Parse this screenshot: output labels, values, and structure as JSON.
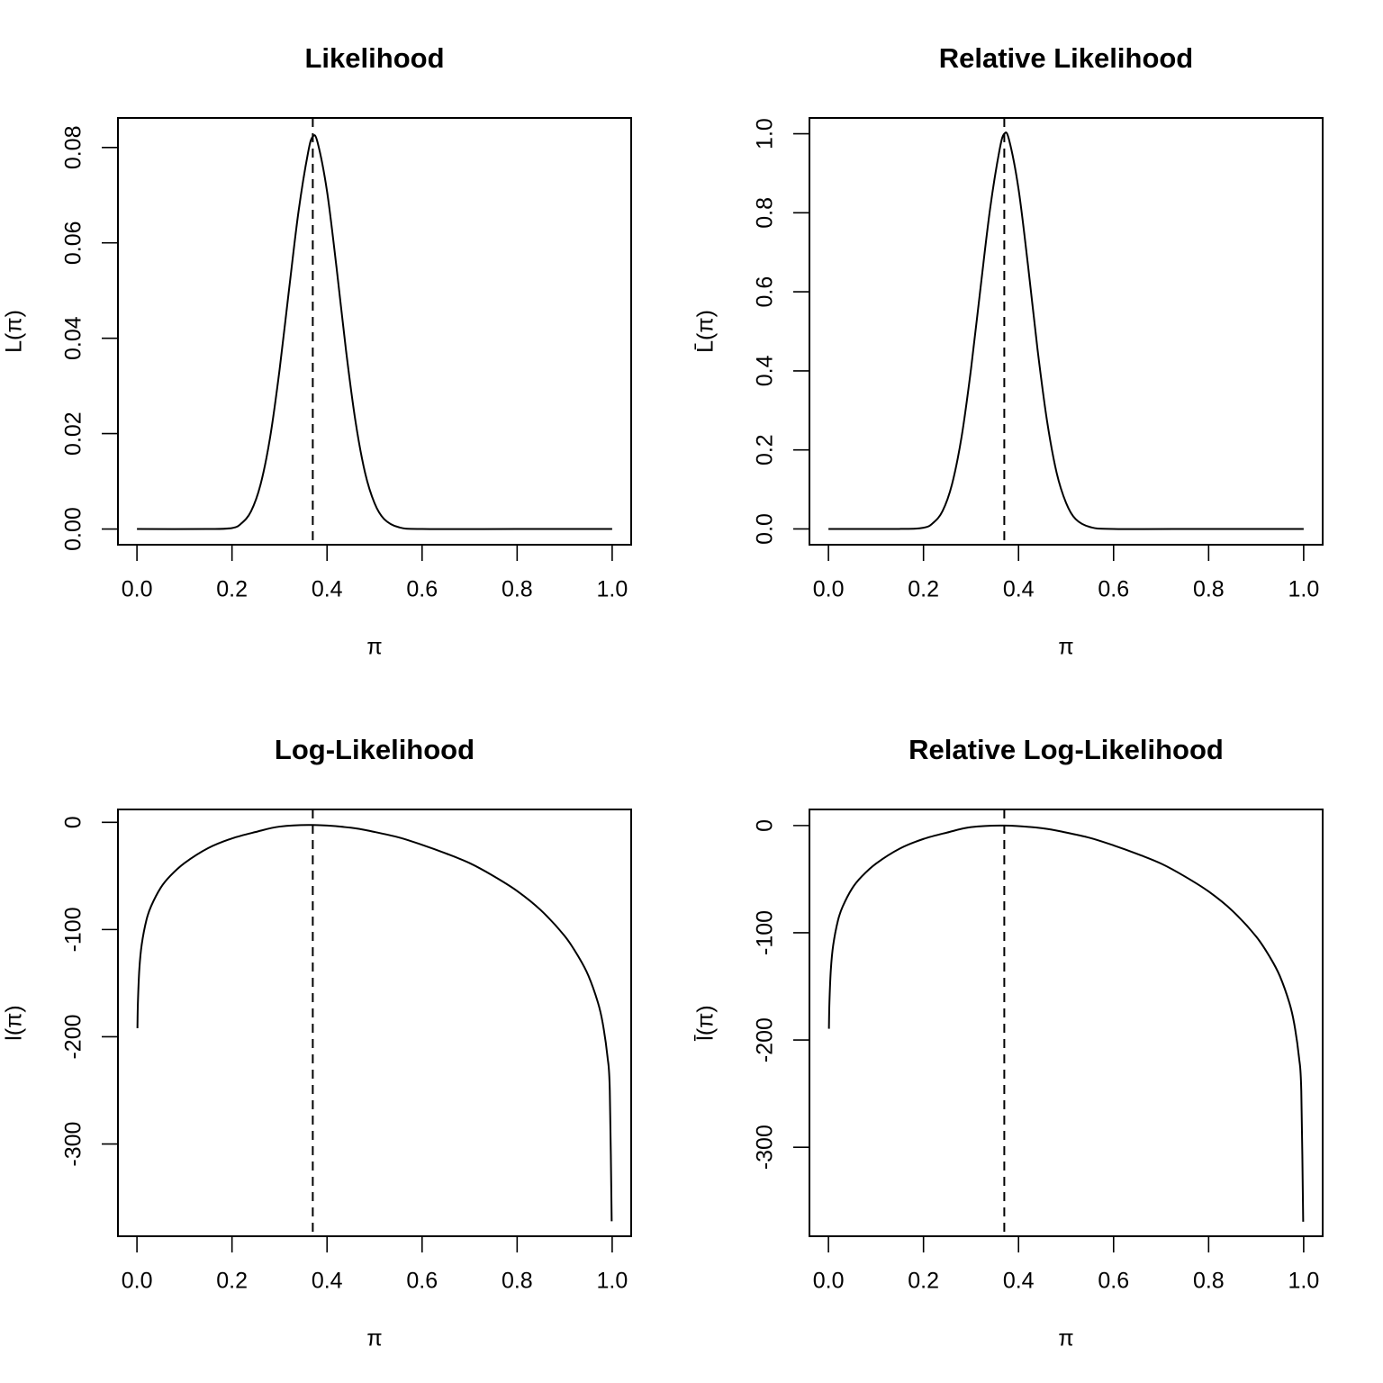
{
  "chart_data": [
    {
      "type": "line",
      "title": "Likelihood",
      "xlabel": "π",
      "ylabel": "L(π)",
      "xlim": [
        -0.04,
        1.04
      ],
      "ylim": [
        -0.0033,
        0.0862
      ],
      "xticks": [
        0.0,
        0.2,
        0.4,
        0.6,
        0.8,
        1.0
      ],
      "xtick_labels": [
        "0.0",
        "0.2",
        "0.4",
        "0.6",
        "0.8",
        "1.0"
      ],
      "yticks": [
        0.0,
        0.02,
        0.04,
        0.06,
        0.08
      ],
      "ytick_labels": [
        "0.00",
        "0.02",
        "0.04",
        "0.06",
        "0.08"
      ],
      "vline": 0.37,
      "series": [
        {
          "x": [
            0.0,
            0.15,
            0.2,
            0.22,
            0.24,
            0.26,
            0.28,
            0.3,
            0.32,
            0.34,
            0.36,
            0.37,
            0.38,
            0.4,
            0.42,
            0.44,
            0.46,
            0.48,
            0.5,
            0.52,
            0.55,
            0.6,
            0.8,
            1.0
          ],
          "y": [
            0.0,
            0.0,
            0.0002,
            0.0012,
            0.0037,
            0.0093,
            0.0191,
            0.0333,
            0.0502,
            0.0666,
            0.0789,
            0.0823,
            0.0811,
            0.0708,
            0.0548,
            0.0374,
            0.0225,
            0.0118,
            0.0054,
            0.0021,
            0.0004,
            0.0,
            0.0,
            0.0
          ]
        }
      ],
      "grid": false
    },
    {
      "type": "line",
      "title": "Relative Likelihood",
      "xlabel": "π",
      "ylabel": "L̄(π)",
      "xlim": [
        -0.04,
        1.04
      ],
      "ylim": [
        -0.04,
        1.04
      ],
      "xticks": [
        0.0,
        0.2,
        0.4,
        0.6,
        0.8,
        1.0
      ],
      "xtick_labels": [
        "0.0",
        "0.2",
        "0.4",
        "0.6",
        "0.8",
        "1.0"
      ],
      "yticks": [
        0.0,
        0.2,
        0.4,
        0.6,
        0.8,
        1.0
      ],
      "ytick_labels": [
        "0.0",
        "0.2",
        "0.4",
        "0.6",
        "0.8",
        "1.0"
      ],
      "vline": 0.37,
      "series": [
        {
          "x": [
            0.0,
            0.15,
            0.2,
            0.22,
            0.24,
            0.26,
            0.28,
            0.3,
            0.32,
            0.34,
            0.36,
            0.37,
            0.38,
            0.4,
            0.42,
            0.44,
            0.46,
            0.48,
            0.5,
            0.52,
            0.55,
            0.6,
            0.8,
            1.0
          ],
          "y": [
            0.0,
            0.0,
            0.003,
            0.015,
            0.045,
            0.113,
            0.232,
            0.405,
            0.61,
            0.809,
            0.959,
            1.0,
            0.985,
            0.86,
            0.666,
            0.454,
            0.273,
            0.143,
            0.066,
            0.025,
            0.005,
            0.0,
            0.0,
            0.0
          ]
        }
      ],
      "grid": false
    },
    {
      "type": "line",
      "title": "Log-Likelihood",
      "xlabel": "π",
      "ylabel": "l(π)",
      "xlim": [
        -0.04,
        1.04
      ],
      "ylim": [
        -386,
        12
      ],
      "xticks": [
        0.0,
        0.2,
        0.4,
        0.6,
        0.8,
        1.0
      ],
      "xtick_labels": [
        "0.0",
        "0.2",
        "0.4",
        "0.6",
        "0.8",
        "1.0"
      ],
      "yticks": [
        0,
        -100,
        -200,
        -300
      ],
      "ytick_labels": [
        "0",
        "-100",
        "-200",
        "-300"
      ],
      "vline": 0.37,
      "series": [
        {
          "x": [
            0.001,
            0.002,
            0.005,
            0.01,
            0.02,
            0.03,
            0.05,
            0.07,
            0.1,
            0.15,
            0.2,
            0.25,
            0.3,
            0.37,
            0.45,
            0.5,
            0.55,
            0.6,
            0.65,
            0.7,
            0.75,
            0.8,
            0.85,
            0.9,
            0.93,
            0.95,
            0.97,
            0.98,
            0.99,
            0.995,
            0.999
          ],
          "y": [
            -192,
            -168,
            -137,
            -114,
            -91,
            -78,
            -61,
            -50,
            -38,
            -24,
            -15,
            -9,
            -4,
            -2.5,
            -5,
            -9,
            -14,
            -21,
            -29,
            -38,
            -50,
            -64,
            -82,
            -106,
            -126,
            -143,
            -168,
            -187,
            -218,
            -250,
            -372
          ]
        }
      ],
      "grid": false
    },
    {
      "type": "line",
      "title": "Relative Log-Likelihood",
      "xlabel": "π",
      "ylabel": "l̄(π)",
      "xlim": [
        -0.04,
        1.04
      ],
      "ylim": [
        -383,
        15
      ],
      "xticks": [
        0.0,
        0.2,
        0.4,
        0.6,
        0.8,
        1.0
      ],
      "xtick_labels": [
        "0.0",
        "0.2",
        "0.4",
        "0.6",
        "0.8",
        "1.0"
      ],
      "yticks": [
        0,
        -100,
        -200,
        -300
      ],
      "ytick_labels": [
        "0",
        "-100",
        "-200",
        "-300"
      ],
      "vline": 0.37,
      "series": [
        {
          "x": [
            0.001,
            0.002,
            0.005,
            0.01,
            0.02,
            0.03,
            0.05,
            0.07,
            0.1,
            0.15,
            0.2,
            0.25,
            0.3,
            0.37,
            0.45,
            0.5,
            0.55,
            0.6,
            0.65,
            0.7,
            0.75,
            0.8,
            0.85,
            0.9,
            0.93,
            0.95,
            0.97,
            0.98,
            0.99,
            0.995,
            0.999
          ],
          "y": [
            -189.5,
            -165.5,
            -134.5,
            -111.5,
            -88.5,
            -75.5,
            -58.5,
            -47.5,
            -35.5,
            -21.5,
            -12.5,
            -6.5,
            -1.5,
            0,
            -2.5,
            -6.5,
            -11.5,
            -18.5,
            -26.5,
            -35.5,
            -47.5,
            -61.5,
            -79.5,
            -103.5,
            -123.5,
            -140.5,
            -165.5,
            -184.5,
            -215.5,
            -247.5,
            -369.5
          ]
        }
      ],
      "grid": false
    }
  ]
}
